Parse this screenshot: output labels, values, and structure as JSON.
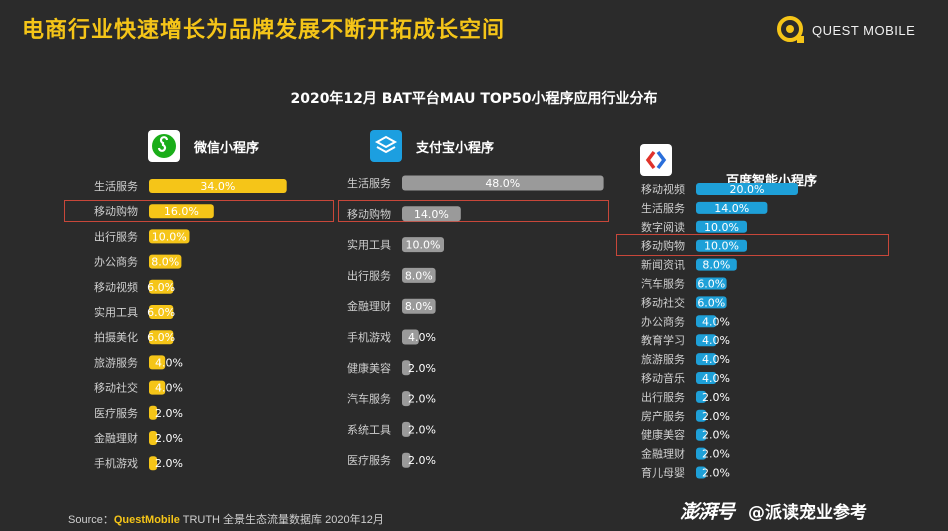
{
  "header": {
    "title": "电商行业快速增长为品牌发展不断开拓成长空间",
    "brand_name": "QUEST MOBILE"
  },
  "chart_title": "2020年12月 BAT平台MAU TOP50小程序应用行业分布",
  "colors": {
    "wechat_bar": "#f5c518",
    "alipay_bar": "#9a9a9a",
    "baidu_bar": "#1ea0d8",
    "highlight_border": "#c8473a",
    "background": "#2b2b2b"
  },
  "chart_data": [
    {
      "type": "bar",
      "orientation": "horizontal",
      "title": "微信小程序",
      "icon": "wechat-miniprogram-icon",
      "highlight": "移动购物",
      "categories": [
        "生活服务",
        "移动购物",
        "出行服务",
        "办公商务",
        "移动视频",
        "实用工具",
        "拍摄美化",
        "旅游服务",
        "移动社交",
        "医疗服务",
        "金融理财",
        "手机游戏"
      ],
      "values": [
        34.0,
        16.0,
        10.0,
        8.0,
        6.0,
        6.0,
        6.0,
        4.0,
        4.0,
        2.0,
        2.0,
        2.0
      ],
      "value_labels": [
        "34.0%",
        "16.0%",
        "10.0%",
        "8.0%",
        "6.0%",
        "6.0%",
        "6.0%",
        "4.0%",
        "4.0%",
        "2.0%",
        "2.0%",
        "2.0%"
      ]
    },
    {
      "type": "bar",
      "orientation": "horizontal",
      "title": "支付宝小程序",
      "icon": "alipay-miniprogram-icon",
      "highlight": "移动购物",
      "categories": [
        "生活服务",
        "移动购物",
        "实用工具",
        "出行服务",
        "金融理财",
        "手机游戏",
        "健康美容",
        "汽车服务",
        "系统工具",
        "医疗服务"
      ],
      "values": [
        48.0,
        14.0,
        10.0,
        8.0,
        8.0,
        4.0,
        2.0,
        2.0,
        2.0,
        2.0
      ],
      "value_labels": [
        "48.0%",
        "14.0%",
        "10.0%",
        "8.0%",
        "8.0%",
        "4.0%",
        "2.0%",
        "2.0%",
        "2.0%",
        "2.0%"
      ]
    },
    {
      "type": "bar",
      "orientation": "horizontal",
      "title": "百度智能小程序",
      "icon": "baidu-smart-program-icon",
      "highlight": "移动购物",
      "categories": [
        "移动视频",
        "生活服务",
        "数字阅读",
        "移动购物",
        "新闻资讯",
        "汽车服务",
        "移动社交",
        "办公商务",
        "教育学习",
        "旅游服务",
        "移动音乐",
        "出行服务",
        "房产服务",
        "健康美容",
        "金融理财",
        "育儿母婴"
      ],
      "values": [
        20.0,
        14.0,
        10.0,
        10.0,
        8.0,
        6.0,
        6.0,
        4.0,
        4.0,
        4.0,
        4.0,
        2.0,
        2.0,
        2.0,
        2.0,
        2.0
      ],
      "value_labels": [
        "20.0%",
        "14.0%",
        "10.0%",
        "10.0%",
        "8.0%",
        "6.0%",
        "6.0%",
        "4.0%",
        "4.0%",
        "4.0%",
        "4.0%",
        "2.0%",
        "2.0%",
        "2.0%",
        "2.0%",
        "2.0%"
      ]
    }
  ],
  "footer": {
    "source_prefix": "Source：",
    "source_brand": "QuestMobile",
    "source_rest": " TRUTH 全景生态流量数据库 2020年12月"
  },
  "watermark": {
    "logo_text": "澎湃号",
    "text": "@派读宠业参考"
  }
}
